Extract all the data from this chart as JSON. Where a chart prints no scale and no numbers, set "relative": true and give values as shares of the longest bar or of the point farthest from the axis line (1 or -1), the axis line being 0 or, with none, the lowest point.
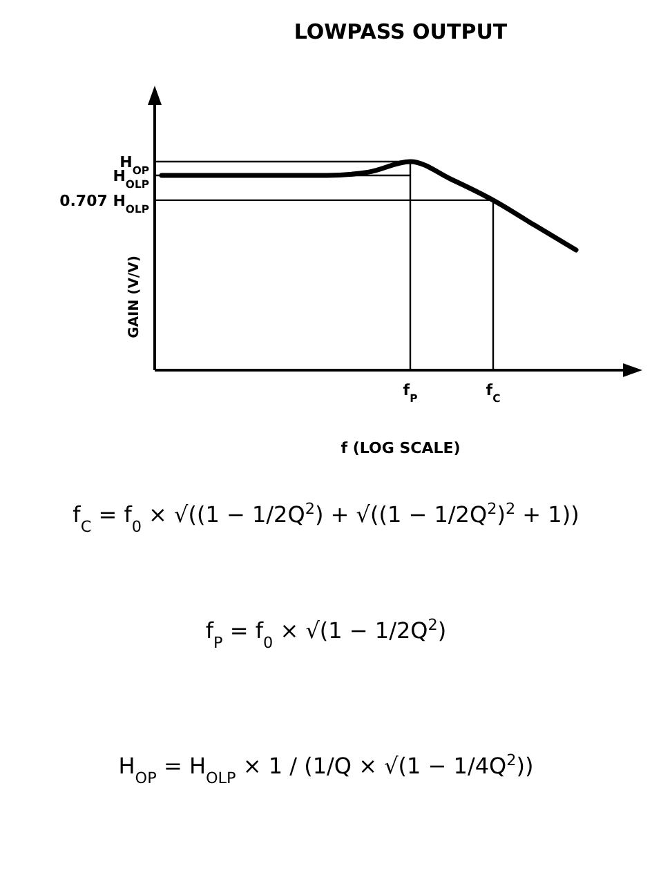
{
  "chart_data": {
    "type": "line",
    "title": "LOWPASS OUTPUT",
    "xlabel": "f (LOG SCALE)",
    "ylabel": "GAIN (V/V)",
    "relative": true,
    "categories": [
      null,
      null,
      null,
      null,
      null,
      null,
      "f$_{P}$",
      null,
      "f$_{C}$",
      null,
      null
    ],
    "series": [
      {
        "color": "#000000",
        "values": [
          0.934,
          0.934,
          0.934,
          0.934,
          0.934,
          0.95,
          1,
          0.914,
          0.815,
          0.695,
          0.576
        ]
      }
    ],
    "ref_lines": [
      {
        "axis": "y",
        "value": 1,
        "label": "H$_{OP}$"
      },
      {
        "axis": "y",
        "value": 0.934,
        "label": "H$_{OLP}$"
      },
      {
        "axis": "y",
        "value": 0.815,
        "label": "0.707 H$_{OLP}$"
      },
      {
        "axis": "x",
        "value": "f$_{P}$"
      },
      {
        "axis": "x",
        "value": "f$_{C}$"
      }
    ],
    "annotations": [
      "f$_{C}$ = f$_{0}$ × √((1 − 1/2Q$^{2}$) + √((1 − 1/2Q$^{2}$)$^{2}$ + 1))",
      "f$_{P}$ = f$_{0}$ × √(1 − 1/2Q$^{2}$)",
      "H$_{OP}$ = H$_{OLP}$ × 1 / (1/Q × √(1 − 1/4Q$^{2}$))"
    ]
  }
}
